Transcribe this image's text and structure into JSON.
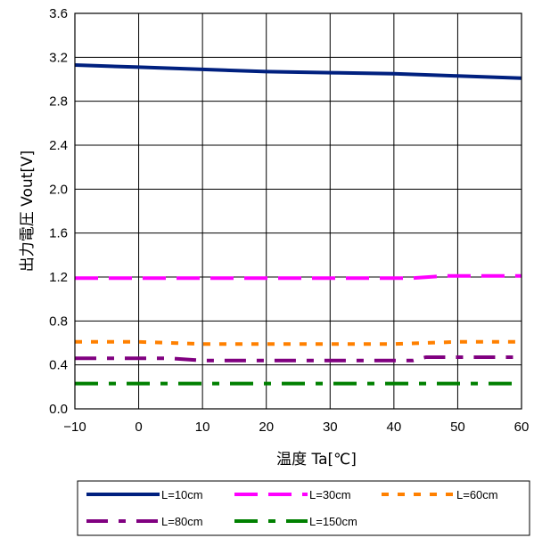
{
  "chart_data": {
    "type": "line",
    "xlabel": "温度  Ta[℃]",
    "ylabel": "出力電圧  Vout[V]",
    "xlim": [
      -10,
      60
    ],
    "ylim": [
      0.0,
      3.6
    ],
    "x_ticks": [
      "−10",
      "0",
      "10",
      "20",
      "30",
      "40",
      "50",
      "60"
    ],
    "y_ticks": [
      "0.0",
      "0.4",
      "0.8",
      "1.2",
      "1.6",
      "2.0",
      "2.4",
      "2.8",
      "3.2",
      "3.6"
    ],
    "grid": true,
    "legend_position": "bottom",
    "series": [
      {
        "name": "L=10cm",
        "color": "#00207f",
        "style": "solid",
        "x": [
          -10,
          0,
          10,
          20,
          30,
          40,
          50,
          60
        ],
        "y": [
          3.13,
          3.11,
          3.09,
          3.07,
          3.06,
          3.05,
          3.03,
          3.01
        ]
      },
      {
        "name": "L=30cm",
        "color": "#ff00ff",
        "style": "dash",
        "x": [
          -10,
          0,
          10,
          20,
          30,
          40,
          43,
          48,
          60
        ],
        "y": [
          1.19,
          1.19,
          1.19,
          1.19,
          1.19,
          1.19,
          1.19,
          1.21,
          1.21
        ]
      },
      {
        "name": "L=60cm",
        "color": "#ff8000",
        "style": "dot",
        "x": [
          -10,
          0,
          10,
          20,
          30,
          40,
          50,
          60
        ],
        "y": [
          0.61,
          0.61,
          0.59,
          0.59,
          0.59,
          0.59,
          0.61,
          0.61
        ]
      },
      {
        "name": "L=80cm",
        "color": "#800080",
        "style": "dashdot",
        "x": [
          -10,
          0,
          5,
          10,
          20,
          30,
          40,
          43,
          45,
          60
        ],
        "y": [
          0.46,
          0.46,
          0.46,
          0.44,
          0.44,
          0.44,
          0.44,
          0.44,
          0.47,
          0.47
        ]
      },
      {
        "name": "L=150cm",
        "color": "#008000",
        "style": "dashdot2",
        "x": [
          -10,
          60
        ],
        "y": [
          0.23,
          0.23
        ]
      }
    ]
  }
}
